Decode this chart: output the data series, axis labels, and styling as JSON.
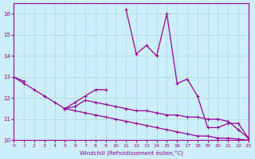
{
  "x": [
    0,
    1,
    2,
    3,
    4,
    5,
    6,
    7,
    8,
    9,
    10,
    11,
    12,
    13,
    14,
    15,
    16,
    17,
    18,
    19,
    20,
    21,
    22,
    23
  ],
  "line1": [
    13.0,
    12.8,
    null,
    12.1,
    null,
    11.5,
    11.8,
    12.1,
    12.4,
    12.4,
    null,
    16.2,
    14.1,
    14.5,
    14.0,
    16.0,
    12.7,
    12.9,
    12.1,
    10.6,
    10.6,
    10.8,
    10.8,
    10.1
  ],
  "line2": [
    null,
    null,
    null,
    null,
    null,
    11.5,
    11.6,
    11.9,
    11.8,
    11.7,
    11.6,
    11.5,
    11.4,
    11.4,
    11.3,
    11.2,
    11.2,
    11.1,
    11.1,
    11.0,
    11.0,
    10.9,
    10.5,
    10.1
  ],
  "line3": [
    13.0,
    12.7,
    12.4,
    12.1,
    11.8,
    11.5,
    11.4,
    11.3,
    11.2,
    11.1,
    11.0,
    10.9,
    10.8,
    10.7,
    10.6,
    10.5,
    10.4,
    10.3,
    10.2,
    10.2,
    10.1,
    10.1,
    10.05,
    10.0
  ],
  "bg_color": "#cceeff",
  "grid_color": "#aaddcc",
  "line_color": "#990099",
  "xlabel": "Windchill (Refroidissement éolien,°C)",
  "ylim": [
    10,
    16.5
  ],
  "xlim": [
    0,
    23
  ],
  "yticks": [
    10,
    11,
    12,
    13,
    14,
    15,
    16
  ],
  "xticks": [
    0,
    1,
    2,
    3,
    4,
    5,
    6,
    7,
    8,
    9,
    10,
    11,
    12,
    13,
    14,
    15,
    16,
    17,
    18,
    19,
    20,
    21,
    22,
    23
  ]
}
